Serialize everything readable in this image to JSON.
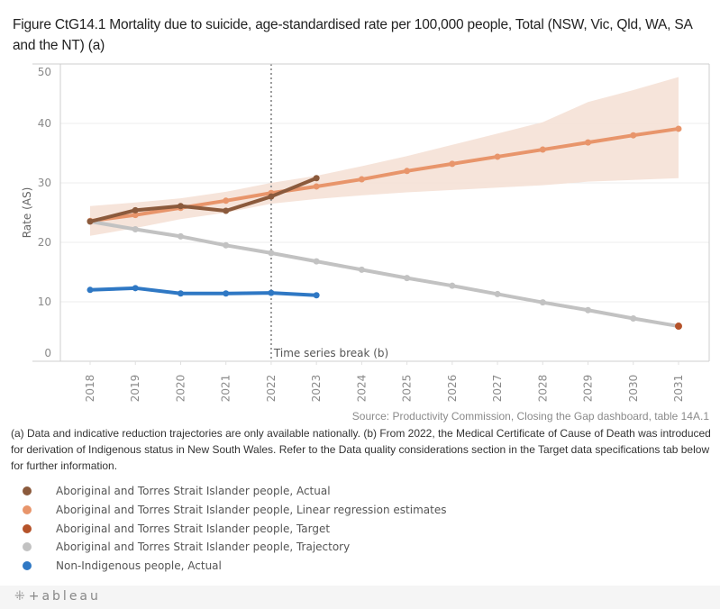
{
  "title": "Figure CtG14.1 Mortality due to suicide, age-standardised rate per 100,000 people, Total (NSW, Vic, Qld, WA, SA and the NT) (a)",
  "source": "Source: Productivity Commission, Closing the Gap dashboard, table 14A.1",
  "notes": "(a) Data and indicative reduction trajectories are only available nationally. (b) From 2022, the Medical Certificate of Cause of Death was introduced for derivation of Indigenous status in New South Wales. Refer to the Data quality considerations section in the Target data specifications tab below for further information.",
  "legend": [
    {
      "label": "Aboriginal and Torres Strait Islander people, Actual",
      "color": "#8b5a3c"
    },
    {
      "label": "Aboriginal and Torres Strait Islander people, Linear regression estimates",
      "color": "#e8956b"
    },
    {
      "label": "Aboriginal and Torres Strait Islander people, Target",
      "color": "#b5532a"
    },
    {
      "label": "Aboriginal and Torres Strait Islander people, Trajectory",
      "color": "#c2c2c2"
    },
    {
      "label": "Non-Indigenous people, Actual",
      "color": "#2f78c4"
    }
  ],
  "footer": {
    "logo_mark": "⁜",
    "logo_text": "+ableau"
  },
  "chart_data": {
    "type": "line",
    "title": "Figure CtG14.1 Mortality due to suicide, age-standardised rate per 100,000 people, Total (NSW, Vic, Qld, WA, SA and the NT) (a)",
    "xlabel": "",
    "ylabel": "Rate (AS)",
    "ylim": [
      0,
      50
    ],
    "yticks": [
      0,
      10,
      20,
      30,
      40,
      50
    ],
    "x": [
      2018,
      2019,
      2020,
      2021,
      2022,
      2023,
      2024,
      2025,
      2026,
      2027,
      2028,
      2029,
      2030,
      2031
    ],
    "xtick_labels": [
      "2018",
      "2019",
      "2020",
      "2021",
      "2022",
      "2023",
      "2024",
      "2025",
      "2026",
      "2027",
      "2028",
      "2029",
      "2030",
      "2031"
    ],
    "grid": true,
    "annotation": {
      "x": 2022,
      "label": "Time series break (b)"
    },
    "band": {
      "name": "Linear regression confidence interval",
      "color": "#f5e1d6",
      "x": [
        2018,
        2019,
        2020,
        2021,
        2022,
        2023,
        2024,
        2025,
        2026,
        2027,
        2028,
        2029,
        2030,
        2031
      ],
      "upper": [
        26.1,
        26.7,
        27.4,
        28.5,
        30.0,
        31.2,
        32.8,
        34.5,
        36.4,
        38.3,
        40.2,
        43.6,
        45.6,
        47.8
      ],
      "lower": [
        21.1,
        22.4,
        23.9,
        25.0,
        26.5,
        27.3,
        27.9,
        28.4,
        28.8,
        29.2,
        29.6,
        30.2,
        30.5,
        30.8
      ]
    },
    "series": [
      {
        "name": "Aboriginal and Torres Strait Islander people, Linear regression estimates",
        "color": "#e8956b",
        "x": [
          2018,
          2019,
          2020,
          2021,
          2022,
          2023,
          2024,
          2025,
          2026,
          2027,
          2028,
          2029,
          2030,
          2031
        ],
        "values": [
          23.6,
          24.6,
          25.8,
          27.0,
          28.3,
          29.4,
          30.6,
          32.0,
          33.2,
          34.4,
          35.6,
          36.8,
          38.0,
          39.1
        ]
      },
      {
        "name": "Aboriginal and Torres Strait Islander people, Trajectory",
        "color": "#c2c2c2",
        "x": [
          2018,
          2019,
          2020,
          2021,
          2022,
          2023,
          2024,
          2025,
          2026,
          2027,
          2028,
          2029,
          2030,
          2031
        ],
        "values": [
          23.5,
          22.2,
          21.0,
          19.5,
          18.2,
          16.8,
          15.4,
          14.0,
          12.7,
          11.3,
          9.9,
          8.6,
          7.2,
          5.9
        ]
      },
      {
        "name": "Aboriginal and Torres Strait Islander people, Actual",
        "color": "#8b5a3c",
        "x": [
          2018,
          2019,
          2020,
          2021,
          2022,
          2023
        ],
        "values": [
          23.5,
          25.4,
          26.1,
          25.3,
          27.7,
          30.8
        ]
      },
      {
        "name": "Non-Indigenous people, Actual",
        "color": "#2f78c4",
        "x": [
          2018,
          2019,
          2020,
          2021,
          2022,
          2023
        ],
        "values": [
          12.0,
          12.3,
          11.4,
          11.4,
          11.5,
          11.1
        ]
      },
      {
        "name": "Aboriginal and Torres Strait Islander people, Target",
        "color": "#b5532a",
        "x": [
          2031
        ],
        "values": [
          5.9
        ]
      }
    ]
  }
}
